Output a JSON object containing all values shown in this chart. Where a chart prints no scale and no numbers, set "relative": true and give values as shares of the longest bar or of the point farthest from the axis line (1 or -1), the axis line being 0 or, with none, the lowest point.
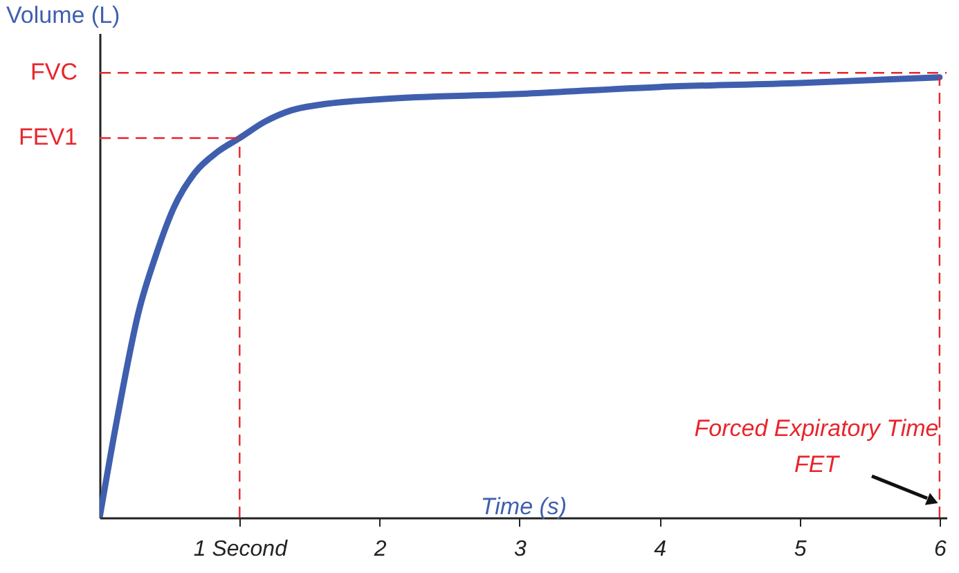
{
  "chart_data": {
    "type": "line",
    "relative": true,
    "xlabel": "Time (s)",
    "ylabel": "Volume (L)",
    "x": [
      0,
      0.13,
      0.28,
      0.4,
      0.53,
      0.68,
      0.84,
      1.0,
      1.18,
      1.37,
      1.56,
      2,
      3,
      4,
      5,
      6
    ],
    "series": [
      {
        "color": "#3f5fae",
        "values": [
          0,
          0.233,
          0.469,
          0.594,
          0.704,
          0.783,
          0.83,
          0.862,
          0.899,
          0.925,
          0.937,
          0.95,
          0.962,
          0.978,
          0.987,
          1.0
        ]
      }
    ],
    "xlim": [
      0,
      6.05
    ],
    "xticks": [
      {
        "value": 1,
        "label": "1 Second"
      },
      2,
      3,
      4,
      5,
      6
    ],
    "ref_lines": [
      {
        "axis": "y",
        "value": 1.01,
        "label": "FVC",
        "color": "#e8252c",
        "line_style": "dashed"
      },
      {
        "axis": "y",
        "value": 0.862,
        "label": "FEV1",
        "color": "#e8252c",
        "line_style": "dashed"
      },
      {
        "axis": "x",
        "value": 1,
        "color": "#e8252c",
        "line_style": "dashed"
      },
      {
        "axis": "x",
        "value": 6,
        "color": "#e8252c",
        "line_style": "dashed"
      }
    ],
    "annotations": [
      "Forced Expiratory Time\nFET"
    ]
  }
}
